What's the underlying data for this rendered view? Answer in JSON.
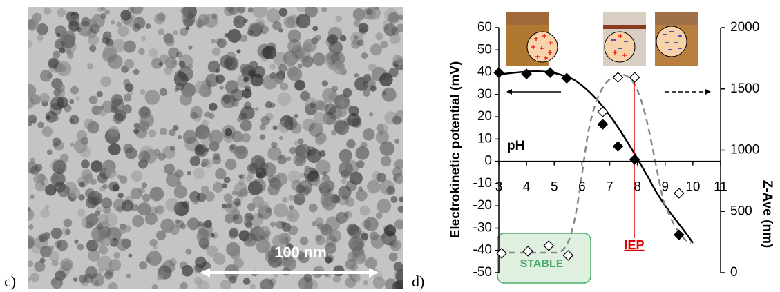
{
  "image_panel": {
    "label": "c)",
    "scale_bar": "100 nm"
  },
  "chart_data": {
    "type": "scatter",
    "panel_label": "d)",
    "ylabel": "Electrokinetic potential (mV)",
    "y2label": "Z-Ave (nm)",
    "annotations": [
      "pH",
      "IEP",
      "STABLE"
    ],
    "xlim": [
      3,
      11
    ],
    "xticks": [
      3,
      4,
      5,
      6,
      7,
      8,
      9,
      10,
      11
    ],
    "ylim": [
      -50,
      60
    ],
    "yticks": [
      -50,
      -40,
      -30,
      -20,
      -10,
      0,
      10,
      20,
      30,
      40,
      50,
      60
    ],
    "y2lim": [
      0,
      2000
    ],
    "y2ticks": [
      0,
      500,
      1000,
      1500,
      2000
    ],
    "series": [
      {
        "color": "#000000",
        "marker": "filled",
        "x": [
          3,
          4,
          4.85,
          5.45,
          6.75,
          7.3,
          7.9,
          9.5
        ],
        "values": [
          39.8,
          39.2,
          39.8,
          37.3,
          16.6,
          6.7,
          0.8,
          -33
        ]
      },
      {
        "color": "#000000",
        "marker": "open",
        "axis": "y2",
        "x": [
          3.1,
          4.05,
          4.8,
          5.5,
          6.75,
          7.3,
          7.9,
          9.5
        ],
        "values": [
          158,
          175,
          220,
          141,
          1313,
          1594,
          1594,
          648
        ]
      }
    ]
  }
}
